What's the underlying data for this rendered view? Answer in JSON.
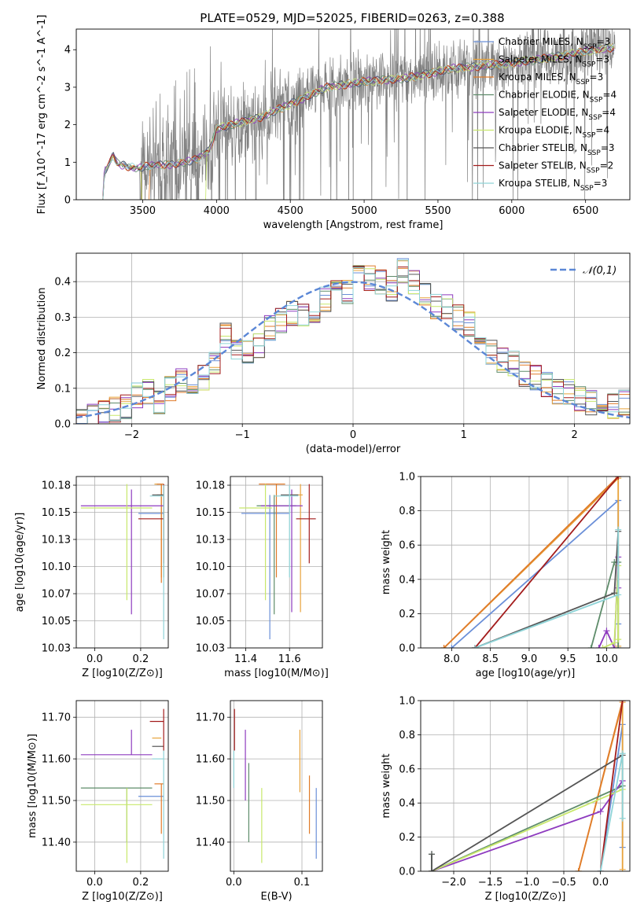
{
  "title": "PLATE=0529, MJD=52025, FIBERID=0263, z=0.388",
  "series": [
    {
      "name": "Chabrier MILES",
      "nssp": "3",
      "color": "#6a8fd8"
    },
    {
      "name": "Salpeter MILES",
      "nssp": "3",
      "color": "#e8a33b"
    },
    {
      "name": "Kroupa MILES",
      "nssp": "3",
      "color": "#e07b2a"
    },
    {
      "name": "Chabrier ELODIE",
      "nssp": "4",
      "color": "#5e8c6a"
    },
    {
      "name": "Salpeter ELODIE",
      "nssp": "4",
      "color": "#8e3bbf"
    },
    {
      "name": "Kroupa ELODIE",
      "nssp": "4",
      "color": "#c8e86b"
    },
    {
      "name": "Chabrier STELIB",
      "nssp": "3",
      "color": "#555555"
    },
    {
      "name": "Salpeter STELIB",
      "nssp": "2",
      "color": "#a31c1c"
    },
    {
      "name": "Kroupa STELIB",
      "nssp": "3",
      "color": "#8fd4d8"
    }
  ],
  "chart_data": [
    {
      "id": "spectrum",
      "type": "line",
      "xlabel": "wavelength [Angstrom, rest frame]",
      "ylabel": "Flux [f_λ10^-17 erg cm^-2 s^-1 A^-1]",
      "xlim": [
        3050,
        6800
      ],
      "ylim": [
        0,
        4.55
      ],
      "xticks": [
        3500,
        4000,
        4500,
        5000,
        5500,
        6000,
        6500
      ],
      "yticks": [
        0,
        1,
        2,
        3,
        4
      ],
      "data_noise": 0.9,
      "model_knots": [
        [
          3230,
          0
        ],
        [
          3240,
          0.75
        ],
        [
          3270,
          0.9
        ],
        [
          3300,
          1.2
        ],
        [
          3330,
          0.95
        ],
        [
          3450,
          0.85
        ],
        [
          3550,
          0.9
        ],
        [
          3700,
          0.95
        ],
        [
          3850,
          1.05
        ],
        [
          3950,
          1.3
        ],
        [
          4000,
          1.9
        ],
        [
          4150,
          2.05
        ],
        [
          4300,
          2.2
        ],
        [
          4500,
          2.55
        ],
        [
          4750,
          3.0
        ],
        [
          5000,
          3.15
        ],
        [
          5300,
          3.25
        ],
        [
          5600,
          3.5
        ],
        [
          5900,
          3.6
        ],
        [
          6200,
          3.75
        ],
        [
          6500,
          3.95
        ],
        [
          6650,
          4.05
        ]
      ]
    },
    {
      "id": "residual_hist",
      "type": "histogram",
      "xlabel": "(data-model)/error",
      "ylabel": "Normed distribution",
      "xlim": [
        -2.5,
        2.5
      ],
      "ylim": [
        0,
        0.48
      ],
      "xticks": [
        -2,
        -1,
        0,
        1,
        2
      ],
      "yticks": [
        0,
        0.1,
        0.2,
        0.3,
        0.4
      ],
      "legend": "𝒩(0,1)",
      "bin_edges": [
        -2.5,
        -2.4,
        -2.3,
        -2.2,
        -2.1,
        -2.0,
        -1.9,
        -1.8,
        -1.7,
        -1.6,
        -1.5,
        -1.4,
        -1.3,
        -1.2,
        -1.1,
        -1.0,
        -0.9,
        -0.8,
        -0.7,
        -0.6,
        -0.5,
        -0.4,
        -0.3,
        -0.2,
        -0.1,
        0.0,
        0.1,
        0.2,
        0.3,
        0.4,
        0.5,
        0.6,
        0.7,
        0.8,
        0.9,
        1.0,
        1.1,
        1.2,
        1.3,
        1.4,
        1.5,
        1.6,
        1.7,
        1.8,
        1.9,
        2.0,
        2.1,
        2.2,
        2.3,
        2.4,
        2.5
      ],
      "values": [
        0.01,
        0.02,
        0.03,
        0.04,
        0.05,
        0.08,
        0.09,
        0.06,
        0.1,
        0.12,
        0.12,
        0.13,
        0.17,
        0.25,
        0.2,
        0.2,
        0.22,
        0.27,
        0.29,
        0.31,
        0.31,
        0.32,
        0.35,
        0.39,
        0.37,
        0.41,
        0.41,
        0.4,
        0.38,
        0.43,
        0.4,
        0.36,
        0.33,
        0.33,
        0.3,
        0.28,
        0.22,
        0.2,
        0.18,
        0.17,
        0.14,
        0.13,
        0.11,
        0.09,
        0.09,
        0.07,
        0.06,
        0.06,
        0.05,
        0.06
      ]
    },
    {
      "id": "age_vs_Z",
      "type": "errorbar",
      "xlabel": "Z [log10(Z/Z⊙)]",
      "ylabel": "age  [log10(age/yr)]",
      "xlim": [
        -0.08,
        0.32
      ],
      "ylim": [
        10.025,
        10.183
      ],
      "xticks": [
        0.0,
        0.2
      ],
      "yticks": [
        10.025,
        10.05,
        10.075,
        10.1,
        10.125,
        10.15,
        10.175
      ],
      "points": [
        {
          "s": 0,
          "x": 0.25,
          "xe": [
            0.19,
            0.3
          ],
          "y": 10.149,
          "ye": [
            10.149,
            10.149
          ]
        },
        {
          "s": 1,
          "x": 0.29,
          "xe": [
            0.26,
            0.29
          ],
          "y": 10.176,
          "ye": [
            10.09,
            10.176
          ]
        },
        {
          "s": 2,
          "x": 0.29,
          "xe": [
            0.27,
            0.3
          ],
          "y": 10.176,
          "ye": [
            10.085,
            10.176
          ]
        },
        {
          "s": 3,
          "x": 0.3,
          "xe": [
            0.27,
            0.3
          ],
          "y": 10.166,
          "ye": [
            10.09,
            10.175
          ]
        },
        {
          "s": 4,
          "x": 0.16,
          "xe": [
            -0.06,
            0.3
          ],
          "y": 10.156,
          "ye": [
            10.056,
            10.171
          ]
        },
        {
          "s": 5,
          "x": 0.14,
          "xe": [
            -0.06,
            0.25
          ],
          "y": 10.154,
          "ye": [
            10.069,
            10.176
          ]
        },
        {
          "s": 6,
          "x": 0.28,
          "xe": [
            0.25,
            0.3
          ],
          "y": 10.166,
          "ye": [
            10.166,
            10.166
          ]
        },
        {
          "s": 7,
          "x": 0.3,
          "xe": [
            0.19,
            0.3
          ],
          "y": 10.144,
          "ye": [
            10.103,
            10.176
          ]
        },
        {
          "s": 8,
          "x": 0.3,
          "xe": [
            0.24,
            0.3
          ],
          "y": 10.165,
          "ye": [
            10.033,
            10.175
          ]
        }
      ]
    },
    {
      "id": "age_vs_mass",
      "type": "errorbar",
      "xlabel": "mass [log10(M/M⊙)]",
      "ylabel": "",
      "xlim": [
        11.33,
        11.75
      ],
      "ylim": [
        10.025,
        10.183
      ],
      "xticks": [
        11.4,
        11.6
      ],
      "yticks": [
        10.025,
        10.05,
        10.075,
        10.1,
        10.125,
        10.15,
        10.175
      ],
      "points": [
        {
          "s": 0,
          "x": 11.51,
          "xe": [
            11.38,
            11.6
          ],
          "y": 10.149,
          "ye": [
            10.033,
            10.166
          ]
        },
        {
          "s": 1,
          "x": 11.65,
          "xe": [
            11.6,
            11.66
          ],
          "y": 10.166,
          "ye": [
            10.058,
            10.176
          ]
        },
        {
          "s": 2,
          "x": 11.54,
          "xe": [
            11.46,
            11.58
          ],
          "y": 10.176,
          "ye": [
            10.09,
            10.176
          ]
        },
        {
          "s": 3,
          "x": 11.53,
          "xe": [
            11.45,
            11.63
          ],
          "y": 10.156,
          "ye": [
            10.056,
            10.166
          ]
        },
        {
          "s": 4,
          "x": 11.61,
          "xe": [
            11.47,
            11.66
          ],
          "y": 10.156,
          "ye": [
            10.058,
            10.171
          ]
        },
        {
          "s": 5,
          "x": 11.49,
          "xe": [
            11.37,
            11.52
          ],
          "y": 10.154,
          "ye": [
            10.069,
            10.176
          ]
        },
        {
          "s": 6,
          "x": 11.63,
          "xe": [
            11.56,
            11.64
          ],
          "y": 10.166,
          "ye": [
            10.166,
            10.166
          ]
        },
        {
          "s": 7,
          "x": 11.69,
          "xe": [
            11.63,
            11.72
          ],
          "y": 10.144,
          "ye": [
            10.103,
            10.176
          ]
        },
        {
          "s": 8,
          "x": 11.6,
          "xe": [
            11.53,
            11.64
          ],
          "y": 10.165,
          "ye": [
            10.09,
            10.175
          ]
        }
      ]
    },
    {
      "id": "weight_vs_age",
      "type": "line",
      "xlabel": "age  [log10(age/yr)]",
      "ylabel": "mass weight",
      "xlim": [
        7.6,
        10.3
      ],
      "ylim": [
        0,
        1
      ],
      "xticks": [
        8.0,
        8.5,
        9.0,
        9.5,
        10.0
      ],
      "yticks": [
        0,
        0.2,
        0.4,
        0.6,
        0.8,
        1.0
      ],
      "lines": [
        {
          "s": 0,
          "pts": [
            [
              8.0,
              0
            ],
            [
              10.15,
              0.86
            ],
            [
              10.15,
              0.14
            ]
          ]
        },
        {
          "s": 1,
          "pts": [
            [
              7.9,
              0
            ],
            [
              10.15,
              0.99
            ],
            [
              10.15,
              0.01
            ]
          ]
        },
        {
          "s": 2,
          "pts": [
            [
              7.9,
              0
            ],
            [
              10.15,
              1.0
            ]
          ]
        },
        {
          "s": 3,
          "pts": [
            [
              9.8,
              0
            ],
            [
              10.1,
              0.5
            ],
            [
              10.15,
              0.5
            ],
            [
              10.15,
              0.0
            ]
          ]
        },
        {
          "s": 4,
          "pts": [
            [
              9.9,
              0
            ],
            [
              10.0,
              0.1
            ],
            [
              10.1,
              0.0
            ],
            [
              10.15,
              0.53
            ],
            [
              10.15,
              0.35
            ]
          ]
        },
        {
          "s": 5,
          "pts": [
            [
              9.95,
              0
            ],
            [
              10.1,
              0.03
            ],
            [
              10.15,
              0.48
            ],
            [
              10.15,
              0.05
            ]
          ]
        },
        {
          "s": 6,
          "pts": [
            [
              8.3,
              0
            ],
            [
              10.1,
              0.32
            ],
            [
              10.15,
              0.68
            ]
          ]
        },
        {
          "s": 7,
          "pts": [
            [
              8.3,
              0
            ],
            [
              10.15,
              1.0
            ]
          ]
        },
        {
          "s": 8,
          "pts": [
            [
              8.3,
              0
            ],
            [
              10.15,
              0.31
            ],
            [
              10.15,
              0.69
            ]
          ]
        }
      ]
    },
    {
      "id": "mass_vs_Z",
      "type": "errorbar",
      "xlabel": "Z [log10(Z/Z⊙)]",
      "ylabel": "mass [log10(M/M⊙)]",
      "xlim": [
        -0.08,
        0.32
      ],
      "ylim": [
        11.33,
        11.74
      ],
      "xticks": [
        0.0,
        0.2
      ],
      "yticks": [
        11.4,
        11.5,
        11.6,
        11.7
      ],
      "points": [
        {
          "s": 0,
          "x": 0.25,
          "xe": [
            0.19,
            0.3
          ],
          "y": 11.51,
          "ye": [
            11.51,
            11.51
          ]
        },
        {
          "s": 1,
          "x": 0.29,
          "xe": [
            0.25,
            0.29
          ],
          "y": 11.65,
          "ye": [
            11.65,
            11.65
          ]
        },
        {
          "s": 2,
          "x": 0.29,
          "xe": [
            0.26,
            0.3
          ],
          "y": 11.54,
          "ye": [
            11.42,
            11.54
          ]
        },
        {
          "s": 3,
          "x": 0.14,
          "xe": [
            -0.06,
            0.25
          ],
          "y": 11.53,
          "ye": [
            11.4,
            11.53
          ]
        },
        {
          "s": 4,
          "x": 0.16,
          "xe": [
            -0.06,
            0.25
          ],
          "y": 11.61,
          "ye": [
            11.61,
            11.67
          ]
        },
        {
          "s": 5,
          "x": 0.14,
          "xe": [
            -0.06,
            0.25
          ],
          "y": 11.49,
          "ye": [
            11.35,
            11.53
          ]
        },
        {
          "s": 6,
          "x": 0.28,
          "xe": [
            0.25,
            0.3
          ],
          "y": 11.63,
          "ye": [
            11.63,
            11.63
          ]
        },
        {
          "s": 7,
          "x": 0.3,
          "xe": [
            0.24,
            0.3
          ],
          "y": 11.69,
          "ye": [
            11.62,
            11.72
          ]
        },
        {
          "s": 8,
          "x": 0.3,
          "xe": [
            0.25,
            0.3
          ],
          "y": 11.6,
          "ye": [
            11.36,
            11.62
          ]
        }
      ]
    },
    {
      "id": "mass_vs_ebv",
      "type": "errorbar",
      "xlabel": "E(B-V)",
      "ylabel": "",
      "xlim": [
        -0.005,
        0.13
      ],
      "ylim": [
        11.33,
        11.74
      ],
      "xticks": [
        0.0,
        0.1
      ],
      "yticks": [
        11.4,
        11.5,
        11.6,
        11.7
      ],
      "points": [
        {
          "s": 0,
          "x": 0.121,
          "xe": [
            0.121,
            0.121
          ],
          "y": 11.51,
          "ye": [
            11.36,
            11.53
          ]
        },
        {
          "s": 1,
          "x": 0.097,
          "xe": [
            0.097,
            0.097
          ],
          "y": 11.65,
          "ye": [
            11.52,
            11.67
          ]
        },
        {
          "s": 2,
          "x": 0.111,
          "xe": [
            0.111,
            0.111
          ],
          "y": 11.54,
          "ye": [
            11.42,
            11.56
          ]
        },
        {
          "s": 3,
          "x": 0.022,
          "xe": [
            0.022,
            0.022
          ],
          "y": 11.53,
          "ye": [
            11.4,
            11.59
          ]
        },
        {
          "s": 4,
          "x": 0.017,
          "xe": [
            0.017,
            0.017
          ],
          "y": 11.61,
          "ye": [
            11.5,
            11.67
          ]
        },
        {
          "s": 5,
          "x": 0.041,
          "xe": [
            0.041,
            0.041
          ],
          "y": 11.49,
          "ye": [
            11.35,
            11.53
          ]
        },
        {
          "s": 6,
          "x": 0.001,
          "xe": [
            0.001,
            0.001
          ],
          "y": 11.63,
          "ye": [
            11.63,
            11.63
          ]
        },
        {
          "s": 7,
          "x": 0.001,
          "xe": [
            0.001,
            0.001
          ],
          "y": 11.69,
          "ye": [
            11.62,
            11.72
          ]
        },
        {
          "s": 8,
          "x": 0.0,
          "xe": [
            0.0,
            0.0
          ],
          "y": 11.6,
          "ye": [
            11.53,
            11.62
          ]
        }
      ]
    },
    {
      "id": "weight_vs_Z",
      "type": "line",
      "xlabel": "Z [log10(Z/Z⊙)]",
      "ylabel": "mass weight",
      "xlim": [
        -2.45,
        0.4
      ],
      "ylim": [
        0,
        1
      ],
      "xticks": [
        -2.0,
        -1.5,
        -1.0,
        -0.5,
        0.0
      ],
      "yticks": [
        0,
        0.2,
        0.4,
        0.6,
        0.8,
        1.0
      ],
      "lines": [
        {
          "s": 0,
          "pts": [
            [
              0.0,
              0
            ],
            [
              0.3,
              0.86
            ],
            [
              0.3,
              0.14
            ]
          ]
        },
        {
          "s": 1,
          "pts": [
            [
              -0.3,
              0
            ],
            [
              0.3,
              0.99
            ],
            [
              0.3,
              0.01
            ]
          ]
        },
        {
          "s": 2,
          "pts": [
            [
              -0.3,
              0
            ],
            [
              0.3,
              1.0
            ]
          ]
        },
        {
          "s": 3,
          "pts": [
            [
              -2.3,
              0.1
            ],
            [
              -2.3,
              0.0
            ],
            [
              0.3,
              0.5
            ]
          ]
        },
        {
          "s": 4,
          "pts": [
            [
              -2.3,
              0
            ],
            [
              0.0,
              0.35
            ],
            [
              0.3,
              0.53
            ]
          ]
        },
        {
          "s": 5,
          "pts": [
            [
              -2.3,
              0.0
            ],
            [
              0.3,
              0.48
            ]
          ]
        },
        {
          "s": 6,
          "pts": [
            [
              -2.3,
              0.1
            ],
            [
              -2.3,
              0
            ],
            [
              0.3,
              0.68
            ]
          ]
        },
        {
          "s": 7,
          "pts": [
            [
              0.0,
              0
            ],
            [
              0.3,
              1.0
            ]
          ]
        },
        {
          "s": 8,
          "pts": [
            [
              0.0,
              0
            ],
            [
              0.3,
              0.69
            ],
            [
              0.3,
              0.31
            ]
          ]
        }
      ]
    }
  ]
}
